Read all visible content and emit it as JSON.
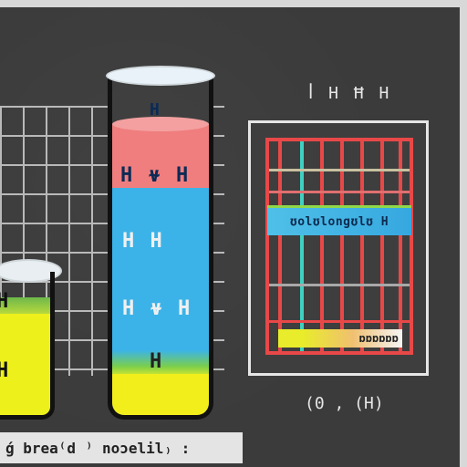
{
  "diagram": {
    "top_label": "ꟾ H Ħ H",
    "coord_label": "(0 ‚ (H)",
    "caption": "ǵ brea⁽d ⁾ noɔelil₎ :",
    "tall_cylinder": {
      "labels": [
        "H",
        "H ⍱ H",
        "H H",
        "H ⍱ H",
        "H"
      ]
    },
    "small_beaker": {
      "labels": [
        "H",
        "H"
      ]
    },
    "panel": {
      "band_text": "ʊolʊlongʊlʊ H",
      "foot_text": "ɒɒɒɒɒɒ",
      "colors": {
        "frame": "#e84848",
        "band": "#4fc0e8",
        "accent_green": "#8fd84a",
        "accent_cyan": "#3fd0c0"
      }
    },
    "colors": {
      "pink": "#f07e7e",
      "blue": "#3bb3e8",
      "yellow": "#f2ee1c",
      "background": "#3a3a3a"
    }
  }
}
